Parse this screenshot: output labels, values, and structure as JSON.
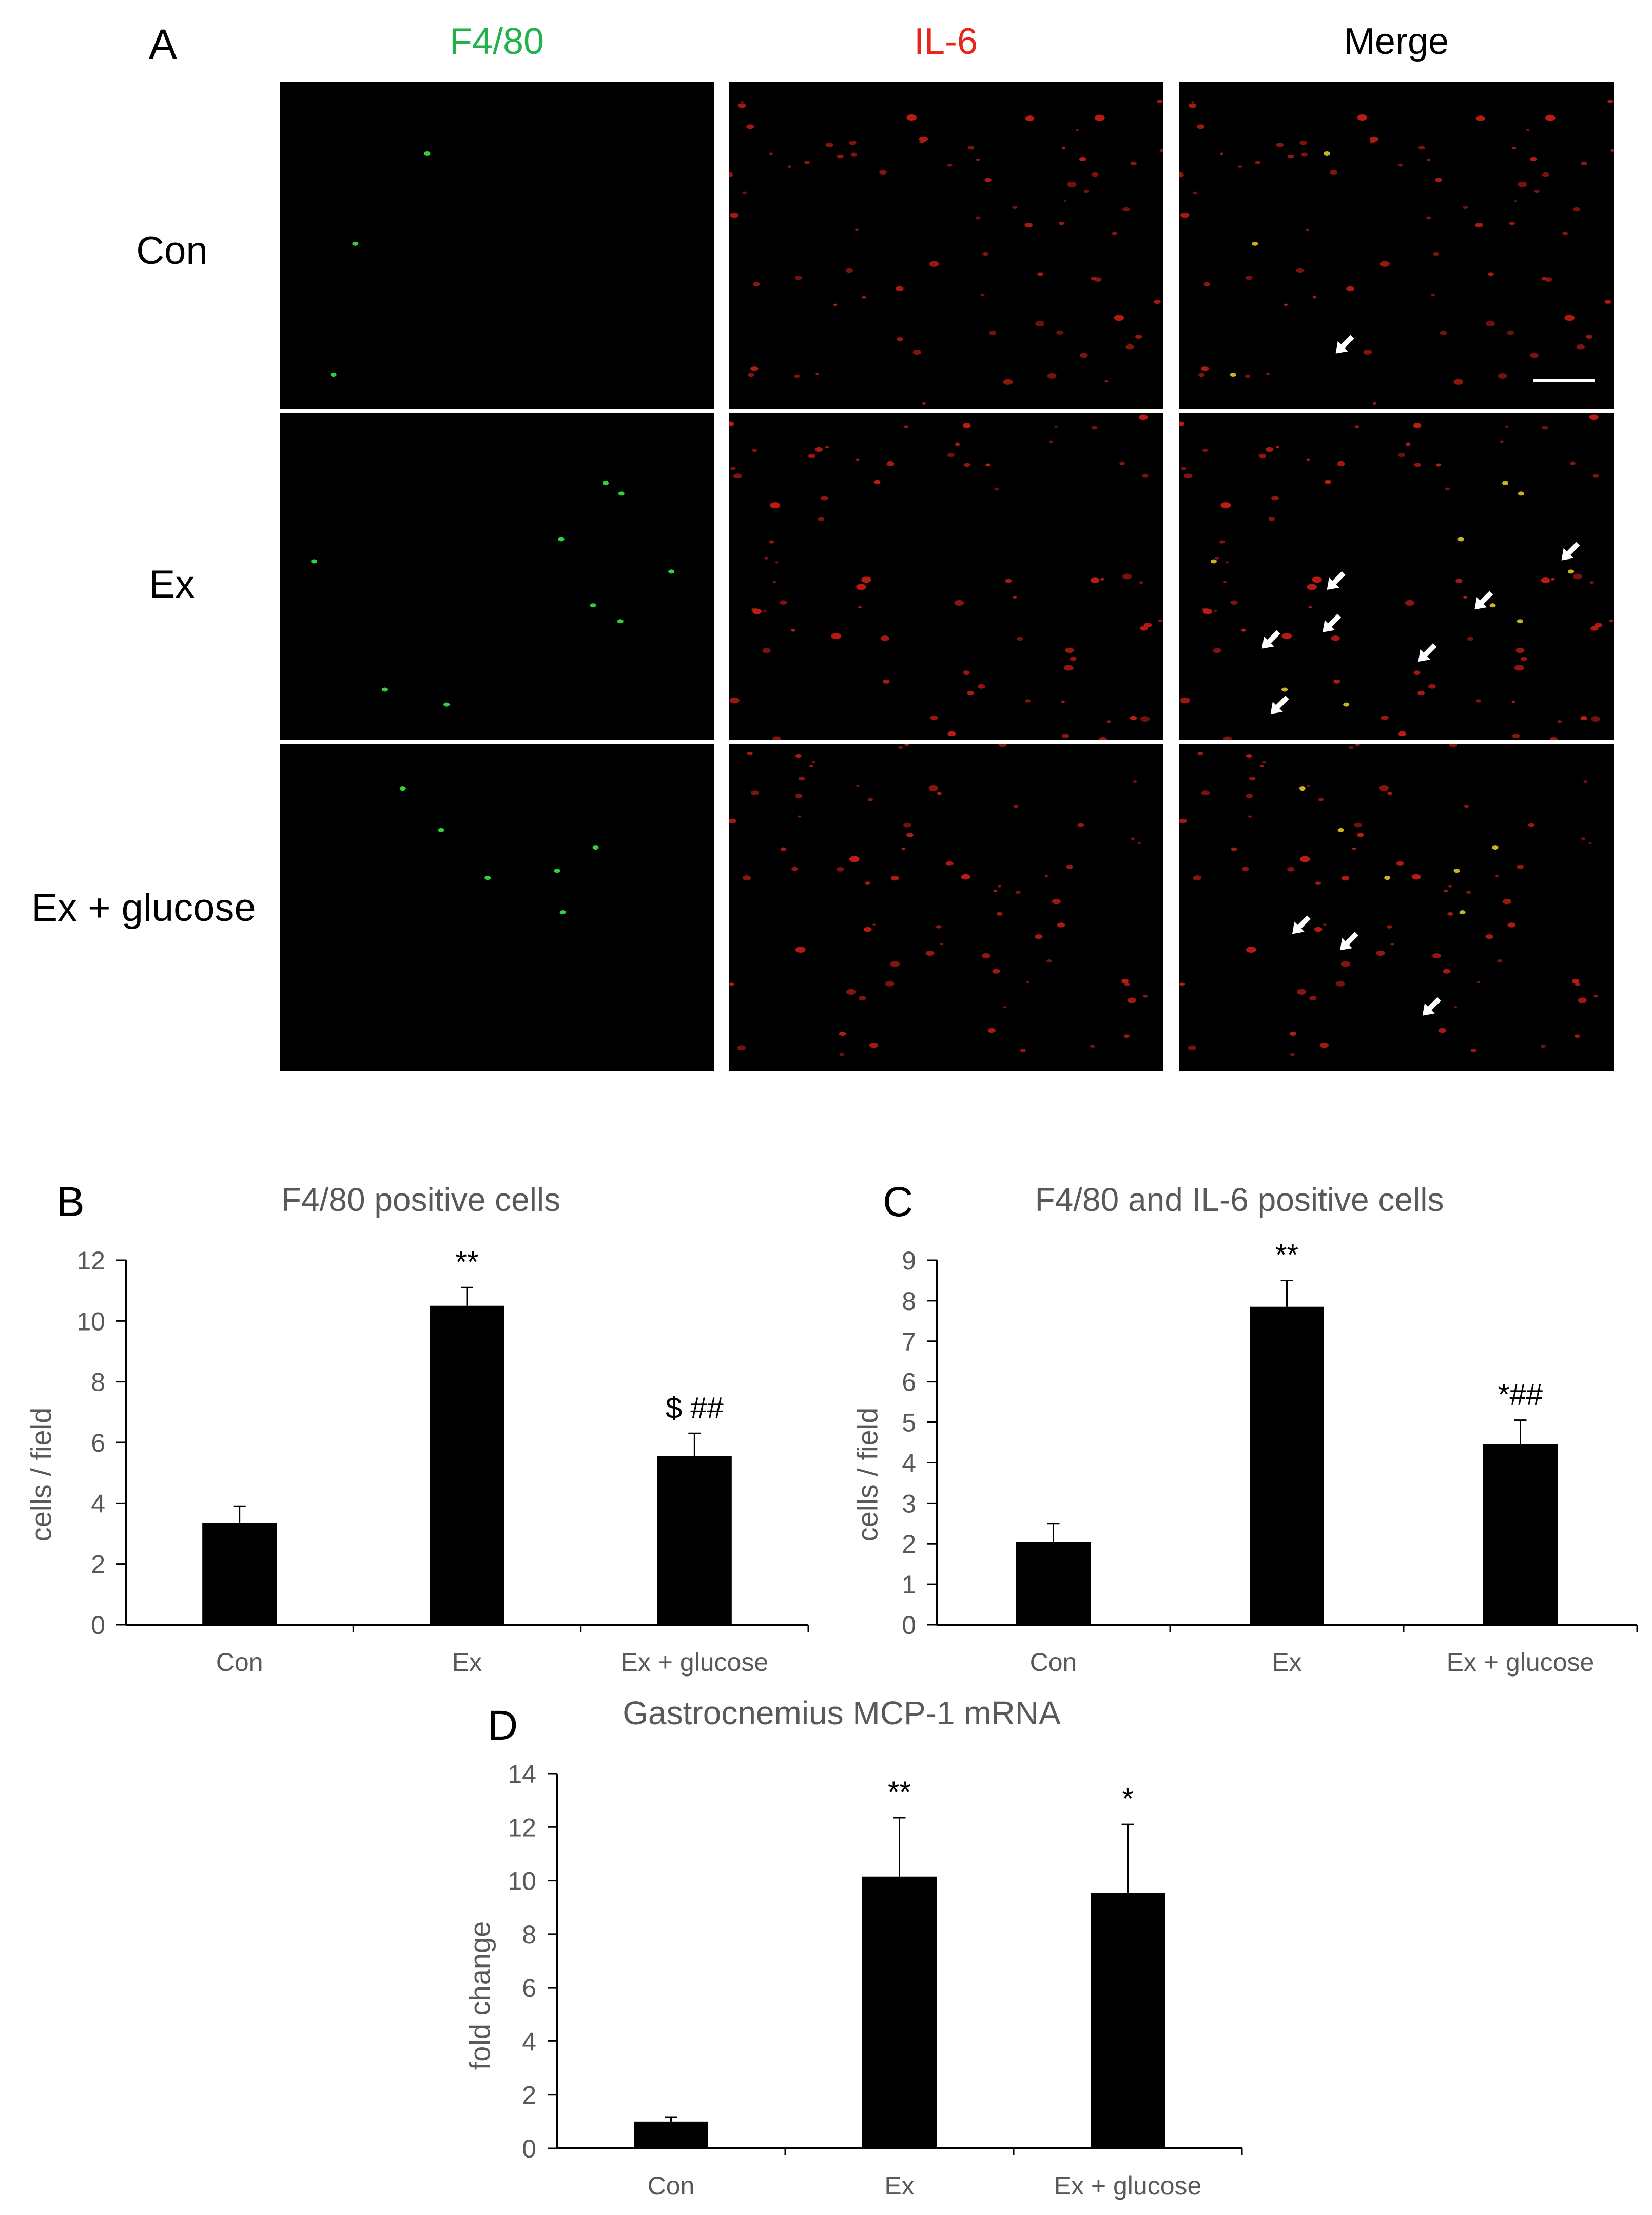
{
  "panel_a": {
    "letter": "A",
    "columns": [
      {
        "label": "F4/80",
        "color": "#22b24c"
      },
      {
        "label": "IL-6",
        "color": "#e8251c"
      },
      {
        "label": "Merge",
        "color": "#000000"
      }
    ],
    "rows": [
      "Con",
      "Ex",
      "Ex + glucose"
    ]
  },
  "chart_data": [
    {
      "letter": "B",
      "type": "bar",
      "title": "F4/80 positive cells",
      "ylabel": "cells / field",
      "xlabel": "",
      "categories": [
        "Con",
        "Ex",
        "Ex + glucose"
      ],
      "values": [
        3.35,
        10.5,
        5.55
      ],
      "errors": [
        0.55,
        0.6,
        0.75
      ],
      "annotations": [
        "",
        "**",
        "$  ##"
      ],
      "ylim": [
        0,
        12
      ],
      "yticks": [
        0,
        2,
        4,
        6,
        8,
        10,
        12
      ],
      "bar_color": "#000000"
    },
    {
      "letter": "C",
      "type": "bar",
      "title": "F4/80 and IL-6 positive cells",
      "ylabel": "cells / field",
      "xlabel": "",
      "categories": [
        "Con",
        "Ex",
        "Ex + glucose"
      ],
      "values": [
        2.05,
        7.85,
        4.45
      ],
      "errors": [
        0.45,
        0.65,
        0.6
      ],
      "annotations": [
        "",
        "**",
        "*##"
      ],
      "ylim": [
        0,
        9
      ],
      "yticks": [
        0,
        1,
        2,
        3,
        4,
        5,
        6,
        7,
        8,
        9
      ],
      "bar_color": "#000000"
    },
    {
      "letter": "D",
      "type": "bar",
      "title": "Gastrocnemius MCP-1 mRNA",
      "ylabel": "fold change",
      "xlabel": "",
      "categories": [
        "Con",
        "Ex",
        "Ex + glucose"
      ],
      "values": [
        1.0,
        10.15,
        9.55
      ],
      "errors": [
        0.15,
        2.2,
        2.55
      ],
      "annotations": [
        "",
        "**",
        "*"
      ],
      "ylim": [
        0,
        14
      ],
      "yticks": [
        0,
        2,
        4,
        6,
        8,
        10,
        12,
        14
      ],
      "bar_color": "#000000"
    }
  ]
}
